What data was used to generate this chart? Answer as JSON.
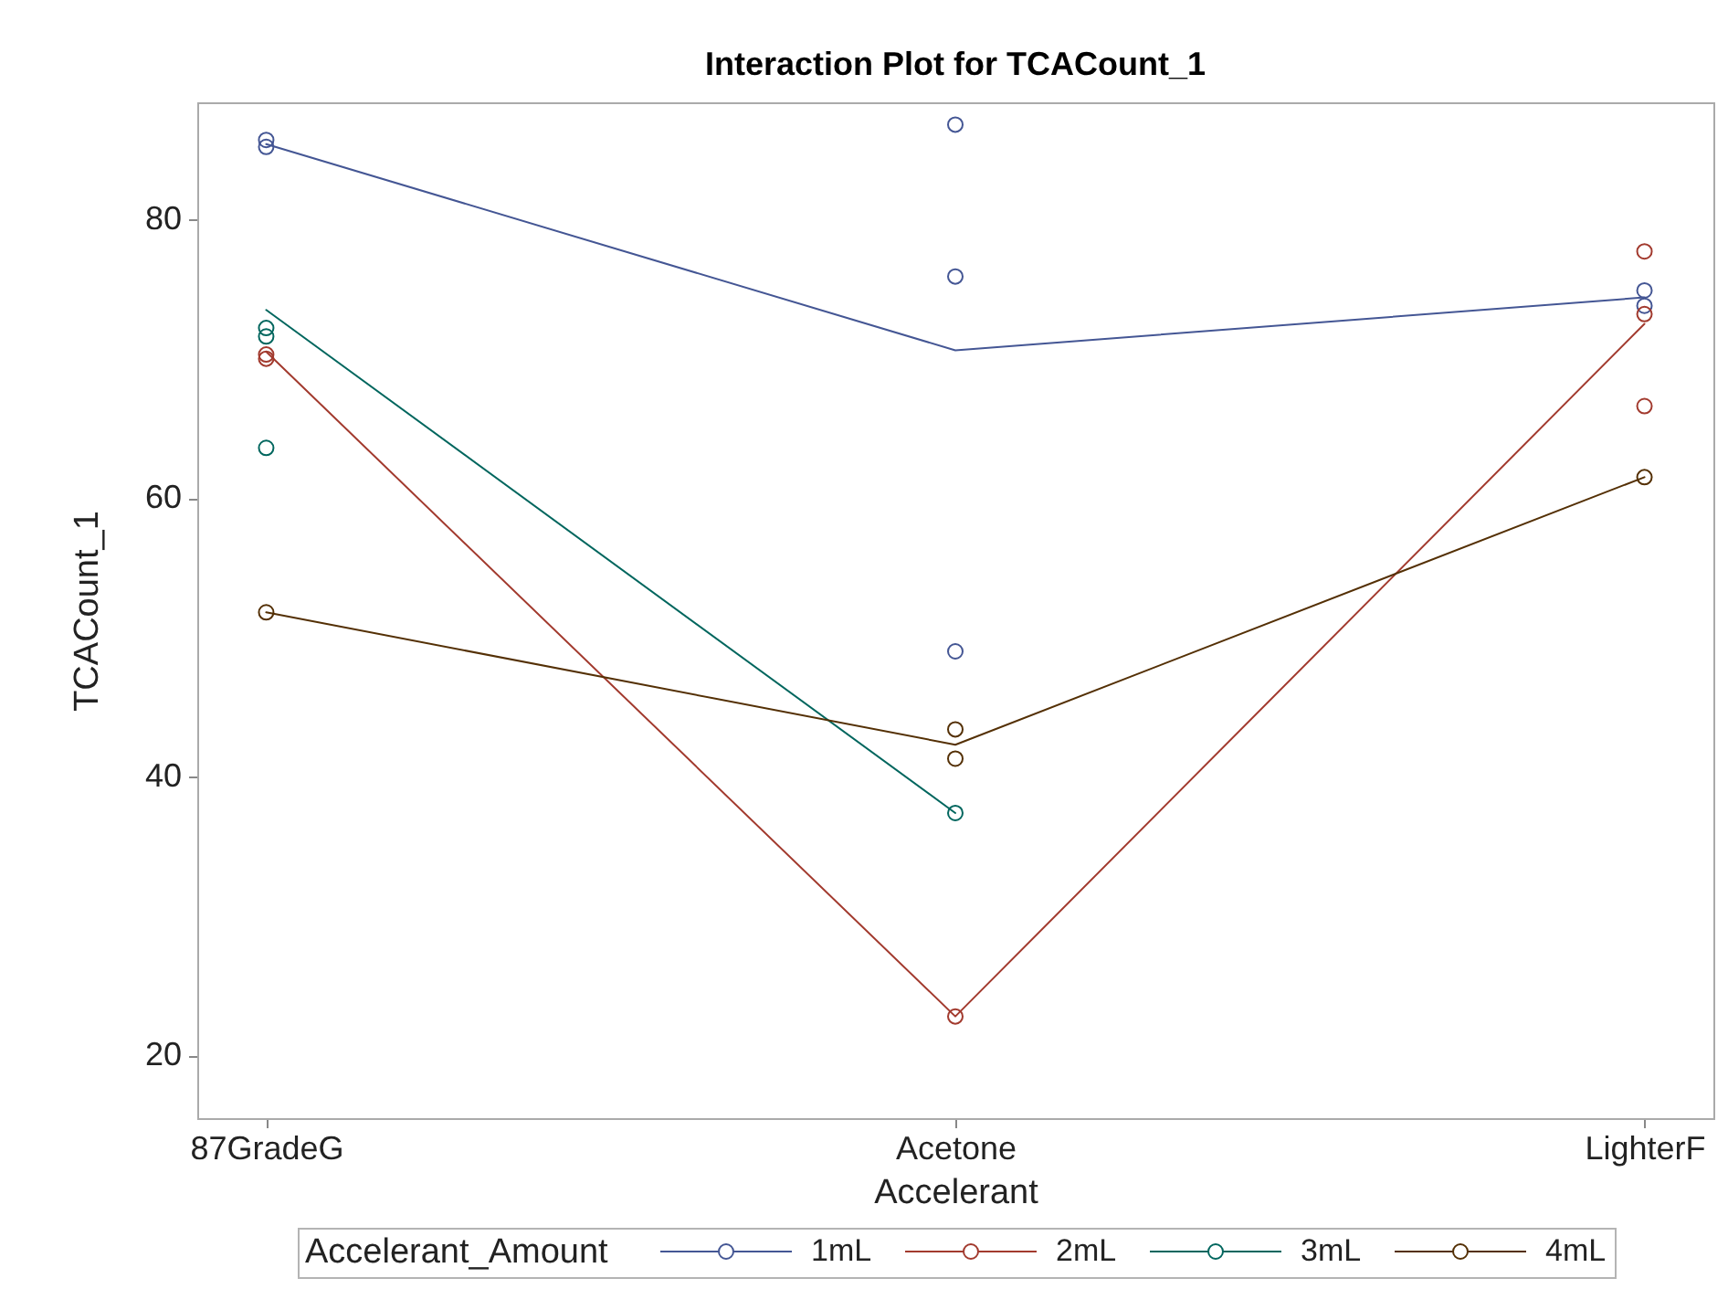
{
  "chart_data": {
    "type": "line",
    "title": "Interaction Plot for TCACount_1",
    "xlabel": "Accelerant",
    "ylabel": "TCACount_1",
    "legend_title": "Accelerant_Amount",
    "legend": "bottom",
    "grid": false,
    "categories": [
      "87GradeG",
      "Acetone",
      "LighterF"
    ],
    "ylim": [
      15.5,
      88.4
    ],
    "yticks": [
      20,
      40,
      60,
      80
    ],
    "series": [
      {
        "name": "1mL",
        "color": "#445694",
        "marker": "none",
        "values": [
          85.4,
          70.6,
          74.4
        ]
      },
      {
        "name": "2mL",
        "color": "#a23a2e",
        "marker": "none",
        "values": [
          70.5,
          22.8,
          72.5
        ]
      },
      {
        "name": "3mL",
        "color": "#01665e",
        "marker": "none",
        "values": [
          73.5,
          37.4,
          null
        ]
      },
      {
        "name": "4mL",
        "color": "#543005",
        "marker": "none",
        "values": [
          51.8,
          42.3,
          61.5
        ]
      },
      {
        "type": "scatter",
        "color": "#445694",
        "marker": "circle",
        "x": [
          "87GradeG",
          "87GradeG",
          "Acetone",
          "Acetone",
          "Acetone",
          "LighterF",
          "LighterF"
        ],
        "values": [
          85.7,
          85.2,
          86.8,
          75.9,
          49.0,
          74.9,
          73.8
        ]
      },
      {
        "type": "scatter",
        "color": "#a23a2e",
        "marker": "circle",
        "x": [
          "87GradeG",
          "87GradeG",
          "Acetone",
          "LighterF",
          "LighterF",
          "LighterF"
        ],
        "values": [
          70.3,
          70.0,
          22.8,
          77.7,
          73.2,
          66.6
        ]
      },
      {
        "type": "scatter",
        "color": "#01665e",
        "marker": "circle",
        "x": [
          "87GradeG",
          "87GradeG",
          "87GradeG",
          "Acetone"
        ],
        "values": [
          72.2,
          71.6,
          63.6,
          37.4
        ]
      },
      {
        "type": "scatter",
        "color": "#543005",
        "marker": "circle",
        "x": [
          "87GradeG",
          "Acetone",
          "Acetone",
          "LighterF"
        ],
        "values": [
          51.8,
          43.4,
          41.3,
          61.5
        ]
      }
    ]
  }
}
